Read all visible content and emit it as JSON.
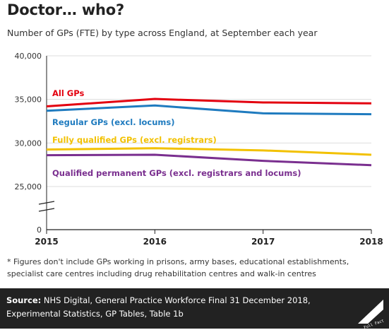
{
  "title": "Doctor… who?",
  "subtitle": "Number of GPs (FTE) by type across England, at September each year",
  "footnote": "* Figures don't include GPs working in prisons, army bases, educational establishments, specialist care centres including drug rehabilitation centres and walk-in centres",
  "source": {
    "label": "Source:",
    "text": " NHS Digital, General Practice Workforce Final 31 December 2018, Experimental Statistics, GP Tables, Table 1b"
  },
  "logo": {
    "text": "Full Fact",
    "icon": "full-fact-logo"
  },
  "colors": {
    "all_gps": "#e3000f",
    "regular": "#1f7bbf",
    "fully_qualified": "#f2c100",
    "permanent": "#7a2f8f",
    "axis": "#222222",
    "grid": "#dddddd",
    "footer_bg": "#222222"
  },
  "chart_data": {
    "type": "line",
    "x": [
      "2015",
      "2016",
      "2017",
      "2018"
    ],
    "y_ticks": [
      "40,000",
      "35,000",
      "30,000",
      "25,000",
      "0"
    ],
    "ylim": [
      0,
      40000
    ],
    "y_axis_break": true,
    "grid": "horizontal",
    "series": [
      {
        "name": "All GPs",
        "color_key": "all_gps",
        "values": [
          34200,
          35050,
          34650,
          34550
        ]
      },
      {
        "name": "Regular GPs (excl. locums)",
        "color_key": "regular",
        "values": [
          33700,
          34300,
          33400,
          33300
        ]
      },
      {
        "name": "Fully qualified GPs (excl. registrars)",
        "color_key": "fully_qualified",
        "values": [
          29250,
          29400,
          29150,
          28650
        ]
      },
      {
        "name": "Qualified permanent GPs (excl. registrars and locums)",
        "color_key": "permanent",
        "values": [
          28600,
          28650,
          27950,
          27450
        ]
      }
    ]
  }
}
